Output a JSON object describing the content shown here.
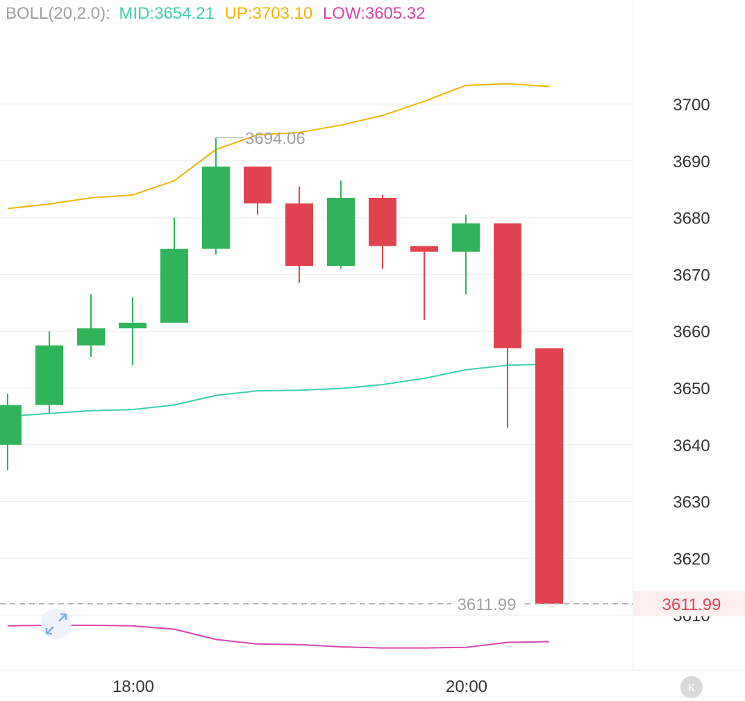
{
  "legend": {
    "indicator": "BOLL(20,2.0):",
    "mid": "MID:3654.21",
    "up": "UP:3703.10",
    "low": "LOW:3605.32"
  },
  "colors": {
    "up_candle": "#2fb45a",
    "down_candle": "#e0434f",
    "mid_line": "#3dcfb0",
    "upper_line": "#f0b400",
    "lower_line": "#d844b0",
    "grid": "#eeeeee",
    "legend_prefix": "#a0a0a0"
  },
  "icons": {
    "expand": "expand-arrows-icon",
    "collapse": "collapse-k-icon",
    "collapse_glyph": "K"
  },
  "chart_data": {
    "type": "candlestick",
    "ylim": [
      3600,
      3710
    ],
    "yticks": [
      3610,
      3620,
      3630,
      3640,
      3650,
      3660,
      3670,
      3680,
      3690,
      3700
    ],
    "ytick_labels": [
      "3610",
      "3620",
      "3630",
      "3640",
      "3650",
      "3660",
      "3670",
      "3680",
      "3690",
      "3700"
    ],
    "xticks": [
      {
        "index": 3,
        "label": "18:00"
      },
      {
        "index": 11,
        "label": "20:00"
      }
    ],
    "candles": [
      {
        "open": 3640.0,
        "close": 3647.0,
        "high": 3649.0,
        "low": 3635.5
      },
      {
        "open": 3647.0,
        "close": 3657.5,
        "high": 3660.0,
        "low": 3645.5
      },
      {
        "open": 3657.5,
        "close": 3660.5,
        "high": 3666.5,
        "low": 3655.5
      },
      {
        "open": 3660.5,
        "close": 3661.5,
        "high": 3666.0,
        "low": 3654.0
      },
      {
        "open": 3661.5,
        "close": 3674.5,
        "high": 3680.0,
        "low": 3661.5
      },
      {
        "open": 3674.5,
        "close": 3689.0,
        "high": 3694.06,
        "low": 3673.5
      },
      {
        "open": 3689.0,
        "close": 3682.5,
        "high": 3689.0,
        "low": 3680.5
      },
      {
        "open": 3682.5,
        "close": 3671.5,
        "high": 3685.5,
        "low": 3668.5
      },
      {
        "open": 3671.5,
        "close": 3683.5,
        "high": 3686.5,
        "low": 3671.0
      },
      {
        "open": 3683.5,
        "close": 3675.0,
        "high": 3684.0,
        "low": 3671.0
      },
      {
        "open": 3675.0,
        "close": 3674.0,
        "high": 3675.0,
        "low": 3662.0
      },
      {
        "open": 3674.0,
        "close": 3679.0,
        "high": 3680.5,
        "low": 3666.5
      },
      {
        "open": 3679.0,
        "close": 3657.0,
        "high": 3679.0,
        "low": 3643.0
      },
      {
        "open": 3657.0,
        "close": 3611.99,
        "high": 3657.0,
        "low": 3611.99
      }
    ],
    "boll": {
      "mid": [
        3645.0,
        3645.5,
        3646.0,
        3646.2,
        3647.0,
        3648.7,
        3649.5,
        3649.6,
        3649.9,
        3650.6,
        3651.7,
        3653.2,
        3654.0,
        3654.21
      ],
      "up": [
        3681.6,
        3682.4,
        3683.5,
        3684.0,
        3686.5,
        3692.0,
        3694.6,
        3695.0,
        3696.3,
        3698.0,
        3700.5,
        3703.3,
        3703.6,
        3703.1
      ],
      "low": [
        3608.1,
        3608.2,
        3608.2,
        3608.1,
        3607.5,
        3605.7,
        3604.9,
        3604.8,
        3604.4,
        3604.2,
        3604.2,
        3604.3,
        3605.2,
        3605.32
      ]
    },
    "annotations": {
      "max_label": "3694.06",
      "max_index": 5,
      "last_price": 3611.99,
      "last_price_label": "3611.99",
      "last_price_axis_label": "3611.99"
    }
  }
}
